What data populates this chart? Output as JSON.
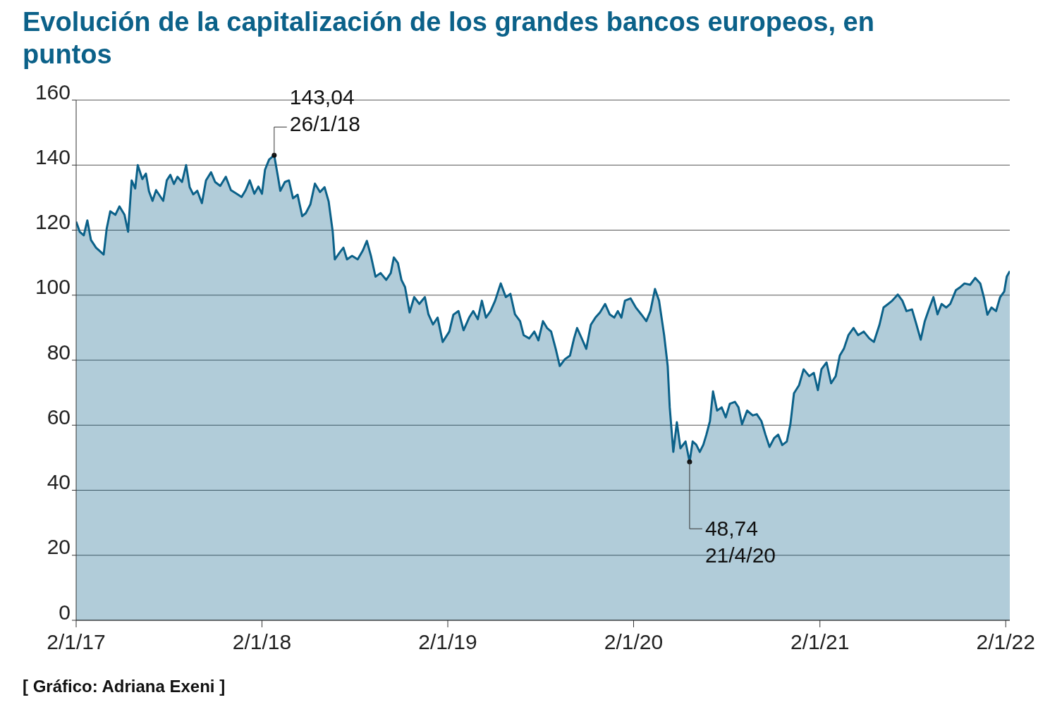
{
  "chart_data": {
    "type": "area",
    "title": "Evolución de la capitalización de los grandes bancos europeos, en puntos",
    "x": [
      "2017-01-02",
      "2017-01-09",
      "2017-01-17",
      "2017-01-24",
      "2017-01-31",
      "2017-02-10",
      "2017-02-25",
      "2017-03-03",
      "2017-03-10",
      "2017-03-20",
      "2017-03-28",
      "2017-04-07",
      "2017-04-14",
      "2017-04-21",
      "2017-04-28",
      "2017-05-03",
      "2017-05-12",
      "2017-05-19",
      "2017-05-25",
      "2017-06-01",
      "2017-06-08",
      "2017-06-22",
      "2017-06-29",
      "2017-07-06",
      "2017-07-13",
      "2017-07-20",
      "2017-07-29",
      "2017-08-06",
      "2017-08-13",
      "2017-08-20",
      "2017-08-28",
      "2017-09-06",
      "2017-09-14",
      "2017-09-24",
      "2017-10-02",
      "2017-10-12",
      "2017-10-23",
      "2017-11-02",
      "2017-11-13",
      "2017-11-23",
      "2017-12-01",
      "2017-12-09",
      "2017-12-18",
      "2017-12-26",
      "2018-01-02",
      "2018-01-08",
      "2018-01-16",
      "2018-01-26",
      "2018-02-02",
      "2018-02-07",
      "2018-02-16",
      "2018-02-24",
      "2018-03-04",
      "2018-03-13",
      "2018-03-22",
      "2018-03-29",
      "2018-04-07",
      "2018-04-16",
      "2018-04-26",
      "2018-05-05",
      "2018-05-13",
      "2018-05-21",
      "2018-05-25",
      "2018-06-04",
      "2018-06-11",
      "2018-06-18",
      "2018-06-28",
      "2018-07-09",
      "2018-07-19",
      "2018-07-27",
      "2018-08-04",
      "2018-08-13",
      "2018-08-23",
      "2018-09-03",
      "2018-09-12",
      "2018-09-18",
      "2018-09-26",
      "2018-10-03",
      "2018-10-10",
      "2018-10-19",
      "2018-10-28",
      "2018-11-07",
      "2018-11-18",
      "2018-11-25",
      "2018-12-04",
      "2018-12-13",
      "2018-12-23",
      "2019-01-05",
      "2019-01-13",
      "2019-01-23",
      "2019-02-02",
      "2019-02-13",
      "2019-02-21",
      "2019-03-02",
      "2019-03-10",
      "2019-03-18",
      "2019-03-27",
      "2019-04-05",
      "2019-04-16",
      "2019-04-26",
      "2019-05-05",
      "2019-05-14",
      "2019-05-24",
      "2019-05-31",
      "2019-06-11",
      "2019-06-21",
      "2019-06-29",
      "2019-07-08",
      "2019-07-16",
      "2019-07-24",
      "2019-08-02",
      "2019-08-10",
      "2019-08-20",
      "2019-08-30",
      "2019-09-07",
      "2019-09-13",
      "2019-09-21",
      "2019-10-01",
      "2019-10-10",
      "2019-10-19",
      "2019-10-28",
      "2019-11-07",
      "2019-11-16",
      "2019-11-25",
      "2019-12-02",
      "2019-12-09",
      "2019-12-16",
      "2019-12-27",
      "2020-01-06",
      "2020-01-17",
      "2020-01-27",
      "2020-02-04",
      "2020-02-13",
      "2020-02-21",
      "2020-03-02",
      "2020-03-09",
      "2020-03-13",
      "2020-03-20",
      "2020-03-27",
      "2020-04-03",
      "2020-04-13",
      "2020-04-21",
      "2020-04-27",
      "2020-05-04",
      "2020-05-11",
      "2020-05-18",
      "2020-05-24",
      "2020-05-31",
      "2020-06-06",
      "2020-06-14",
      "2020-06-23",
      "2020-07-01",
      "2020-07-09",
      "2020-07-19",
      "2020-07-26",
      "2020-08-02",
      "2020-08-12",
      "2020-08-23",
      "2020-08-31",
      "2020-09-09",
      "2020-09-17",
      "2020-09-25",
      "2020-10-04",
      "2020-10-12",
      "2020-10-20",
      "2020-10-29",
      "2020-11-05",
      "2020-11-12",
      "2020-11-22",
      "2020-12-01",
      "2020-12-12",
      "2020-12-21",
      "2020-12-29",
      "2021-01-05",
      "2021-01-15",
      "2021-01-24",
      "2021-02-02",
      "2021-02-10",
      "2021-02-18",
      "2021-02-27",
      "2021-03-09",
      "2021-03-18",
      "2021-03-29",
      "2021-04-09",
      "2021-04-18",
      "2021-04-29",
      "2021-05-07",
      "2021-05-16",
      "2021-05-24",
      "2021-06-04",
      "2021-06-13",
      "2021-06-21",
      "2021-07-02",
      "2021-07-10",
      "2021-07-19",
      "2021-07-27",
      "2021-08-04",
      "2021-08-13",
      "2021-08-21",
      "2021-08-29",
      "2021-09-07",
      "2021-09-15",
      "2021-09-26",
      "2021-10-05",
      "2021-10-13",
      "2021-10-24",
      "2021-11-03",
      "2021-11-13",
      "2021-11-20",
      "2021-11-27",
      "2021-12-05",
      "2021-12-14",
      "2021-12-22",
      "2021-12-30",
      "2022-01-04",
      "2022-01-10"
    ],
    "series": [
      {
        "color": "#0b6189",
        "values": [
          122.6,
          119.5,
          118.4,
          123,
          117,
          114.6,
          112.5,
          120.5,
          125.8,
          124.7,
          127.3,
          124.7,
          119.5,
          135.3,
          132.8,
          140,
          135.7,
          137.4,
          132,
          129,
          132.3,
          129,
          135.3,
          137,
          134.2,
          136.4,
          134.8,
          140,
          133.2,
          131,
          132.1,
          128.3,
          135.3,
          137.8,
          134.8,
          133.6,
          136.4,
          132.3,
          131.2,
          130.2,
          132.3,
          135.3,
          131.2,
          133.4,
          131.2,
          138.6,
          141.7,
          143.04,
          136.8,
          132.1,
          134.8,
          135.3,
          129.8,
          130.9,
          124.3,
          125.2,
          127.9,
          134.3,
          131.7,
          133.2,
          128.8,
          119.5,
          111,
          113.2,
          114.6,
          111,
          112.1,
          111,
          113.7,
          116.7,
          112.1,
          105.7,
          106.8,
          104.7,
          106.8,
          111.6,
          109.9,
          104.7,
          102.5,
          94.7,
          99.4,
          97.3,
          99.4,
          94.1,
          91,
          93.1,
          85.6,
          88.8,
          94,
          95.1,
          89.2,
          93.1,
          95.1,
          92.6,
          98.3,
          93.1,
          95.1,
          98.3,
          103.6,
          99.4,
          100.4,
          94.1,
          92,
          87.7,
          86.7,
          88.8,
          86.1,
          92,
          89.9,
          88.8,
          83.5,
          78.2,
          80.3,
          81.4,
          86.7,
          89.9,
          87.1,
          83.5,
          90.9,
          93.1,
          94.7,
          97.3,
          94.1,
          93.1,
          95.1,
          93.1,
          98.3,
          99,
          96.3,
          94.1,
          92,
          95.1,
          101.9,
          98.3,
          87.7,
          78.2,
          65.5,
          51.8,
          60.9,
          52.9,
          55,
          48.74,
          55,
          54,
          51.8,
          54,
          57.1,
          61.3,
          70.4,
          64.5,
          65.5,
          62.4,
          66.6,
          67.2,
          65.5,
          60.3,
          64.5,
          63,
          63.4,
          61.3,
          57.1,
          53.3,
          56,
          57.1,
          53.9,
          55,
          60.3,
          69.8,
          72.3,
          77.2,
          75.1,
          76.1,
          70.8,
          77.2,
          79.3,
          72.9,
          75.1,
          81.4,
          83.5,
          87.7,
          89.9,
          87.7,
          88.8,
          86.7,
          85.6,
          90.9,
          96.2,
          97.3,
          98.3,
          100.2,
          98.3,
          95.1,
          95.6,
          91.3,
          86.3,
          92,
          95.6,
          99.4,
          94.1,
          97.3,
          96.2,
          97.3,
          101.5,
          102.5,
          103.6,
          103.2,
          105.3,
          103.6,
          99.4,
          94,
          96.2,
          95.1,
          99.4,
          101.1,
          105.7,
          107.4
        ]
      }
    ],
    "xlim": [
      "2017-01-02",
      "2022-01-10"
    ],
    "xticks": [
      {
        "value": "2017-01-02",
        "label": "2/1/17"
      },
      {
        "value": "2018-01-02",
        "label": "2/1/18"
      },
      {
        "value": "2019-01-02",
        "label": "2/1/19"
      },
      {
        "value": "2020-01-02",
        "label": "2/1/20"
      },
      {
        "value": "2021-01-02",
        "label": "2/1/21"
      },
      {
        "value": "2022-01-02",
        "label": "2/1/22"
      }
    ],
    "ylim": [
      0,
      160
    ],
    "yticks": [
      0,
      20,
      40,
      60,
      80,
      100,
      120,
      140,
      160
    ],
    "grid": "y",
    "legend": false,
    "annotations": [
      {
        "text": "143,04\n26/1/18",
        "x": "2018-01-26",
        "y": 143.04
      },
      {
        "text": "48,74\n21/4/20",
        "x": "2020-04-21",
        "y": 48.74
      },
      "[ Gráfico: Adriana Exeni ]"
    ]
  }
}
